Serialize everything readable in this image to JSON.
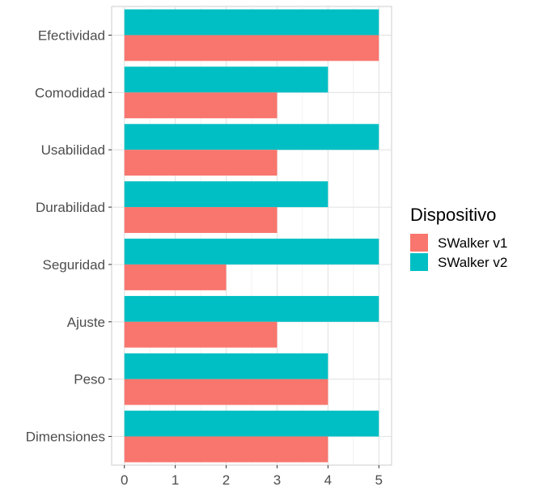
{
  "chart_data": {
    "type": "bar",
    "orientation": "horizontal",
    "categories": [
      "Efectividad",
      "Comodidad",
      "Usabilidad",
      "Durabilidad",
      "Seguridad",
      "Ajuste",
      "Peso",
      "Dimensiones"
    ],
    "series": [
      {
        "name": "SWalker v1",
        "color": "#F8766D",
        "values": [
          5,
          3,
          3,
          3,
          2,
          3,
          4,
          4
        ]
      },
      {
        "name": "SWalker v2",
        "color": "#00BFC4",
        "values": [
          5,
          4,
          5,
          4,
          5,
          5,
          4,
          5
        ]
      }
    ],
    "xlim": [
      -0.25,
      5.25
    ],
    "xticks": [
      0,
      1,
      2,
      3,
      4,
      5
    ],
    "xlabel": "",
    "ylabel": "",
    "grid": true,
    "legend": {
      "title": "Dispositivo",
      "position": "right"
    }
  }
}
